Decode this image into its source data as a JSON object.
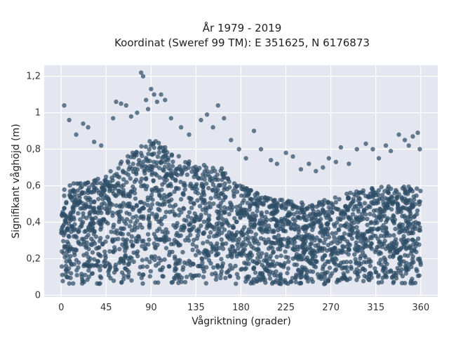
{
  "chart_data": {
    "type": "scatter",
    "title_lines": [
      "År 1979 - 2019",
      "Koordinat (Sweref 99 TM): E 351625, N 6176873"
    ],
    "xlabel": "Vågriktning (grader)",
    "ylabel": "Signifikant våghöjd (m)",
    "xlim": [
      -17,
      377
    ],
    "ylim": [
      -0.01,
      1.26
    ],
    "x_ticks": [
      0,
      45,
      90,
      135,
      180,
      225,
      270,
      315,
      360
    ],
    "x_tick_labels": [
      "0",
      "45",
      "90",
      "135",
      "180",
      "225",
      "270",
      "315",
      "360"
    ],
    "y_ticks": [
      0,
      0.2,
      0.4,
      0.6,
      0.8,
      1.0,
      1.2
    ],
    "y_tick_labels": [
      "0",
      "0,2",
      "0,4",
      "0,6",
      "0,8",
      "1",
      "1,2"
    ],
    "grid": true,
    "background_color": "#e5e7f0",
    "marker_color": "#2e4e66",
    "dense_band": {
      "description_x_range": [
        0,
        360
      ],
      "lower_edge_y": 0.06,
      "upper_envelope": [
        {
          "x": 0,
          "y": 0.6
        },
        {
          "x": 20,
          "y": 0.62
        },
        {
          "x": 45,
          "y": 0.66
        },
        {
          "x": 70,
          "y": 0.78
        },
        {
          "x": 90,
          "y": 0.86
        },
        {
          "x": 110,
          "y": 0.8
        },
        {
          "x": 135,
          "y": 0.72
        },
        {
          "x": 160,
          "y": 0.7
        },
        {
          "x": 180,
          "y": 0.6
        },
        {
          "x": 200,
          "y": 0.55
        },
        {
          "x": 225,
          "y": 0.52
        },
        {
          "x": 250,
          "y": 0.5
        },
        {
          "x": 270,
          "y": 0.53
        },
        {
          "x": 300,
          "y": 0.58
        },
        {
          "x": 330,
          "y": 0.6
        },
        {
          "x": 360,
          "y": 0.6
        }
      ]
    },
    "outliers": [
      {
        "x": 3,
        "y": 1.04
      },
      {
        "x": 8,
        "y": 0.96
      },
      {
        "x": 15,
        "y": 0.88
      },
      {
        "x": 22,
        "y": 0.94
      },
      {
        "x": 27,
        "y": 0.92
      },
      {
        "x": 33,
        "y": 0.84
      },
      {
        "x": 40,
        "y": 0.82
      },
      {
        "x": 52,
        "y": 0.97
      },
      {
        "x": 55,
        "y": 1.06
      },
      {
        "x": 60,
        "y": 1.05
      },
      {
        "x": 65,
        "y": 1.04
      },
      {
        "x": 70,
        "y": 0.98
      },
      {
        "x": 76,
        "y": 1.0
      },
      {
        "x": 80,
        "y": 1.22
      },
      {
        "x": 82,
        "y": 1.2
      },
      {
        "x": 85,
        "y": 1.07
      },
      {
        "x": 87,
        "y": 1.02
      },
      {
        "x": 90,
        "y": 1.13
      },
      {
        "x": 93,
        "y": 1.1
      },
      {
        "x": 96,
        "y": 1.06
      },
      {
        "x": 100,
        "y": 1.1
      },
      {
        "x": 104,
        "y": 1.07
      },
      {
        "x": 110,
        "y": 0.97
      },
      {
        "x": 120,
        "y": 0.92
      },
      {
        "x": 128,
        "y": 0.88
      },
      {
        "x": 140,
        "y": 0.96
      },
      {
        "x": 146,
        "y": 0.99
      },
      {
        "x": 152,
        "y": 0.92
      },
      {
        "x": 157,
        "y": 1.04
      },
      {
        "x": 163,
        "y": 0.97
      },
      {
        "x": 170,
        "y": 0.85
      },
      {
        "x": 178,
        "y": 0.8
      },
      {
        "x": 185,
        "y": 0.75
      },
      {
        "x": 193,
        "y": 0.9
      },
      {
        "x": 200,
        "y": 0.8
      },
      {
        "x": 210,
        "y": 0.74
      },
      {
        "x": 216,
        "y": 0.72
      },
      {
        "x": 225,
        "y": 0.78
      },
      {
        "x": 232,
        "y": 0.76
      },
      {
        "x": 240,
        "y": 0.69
      },
      {
        "x": 248,
        "y": 0.72
      },
      {
        "x": 255,
        "y": 0.68
      },
      {
        "x": 262,
        "y": 0.7
      },
      {
        "x": 268,
        "y": 0.75
      },
      {
        "x": 275,
        "y": 0.73
      },
      {
        "x": 280,
        "y": 0.81
      },
      {
        "x": 288,
        "y": 0.72
      },
      {
        "x": 296,
        "y": 0.8
      },
      {
        "x": 305,
        "y": 0.83
      },
      {
        "x": 312,
        "y": 0.8
      },
      {
        "x": 318,
        "y": 0.75
      },
      {
        "x": 325,
        "y": 0.82
      },
      {
        "x": 330,
        "y": 0.79
      },
      {
        "x": 338,
        "y": 0.88
      },
      {
        "x": 344,
        "y": 0.85
      },
      {
        "x": 348,
        "y": 0.82
      },
      {
        "x": 352,
        "y": 0.87
      },
      {
        "x": 357,
        "y": 0.89
      },
      {
        "x": 359,
        "y": 0.8
      }
    ]
  }
}
